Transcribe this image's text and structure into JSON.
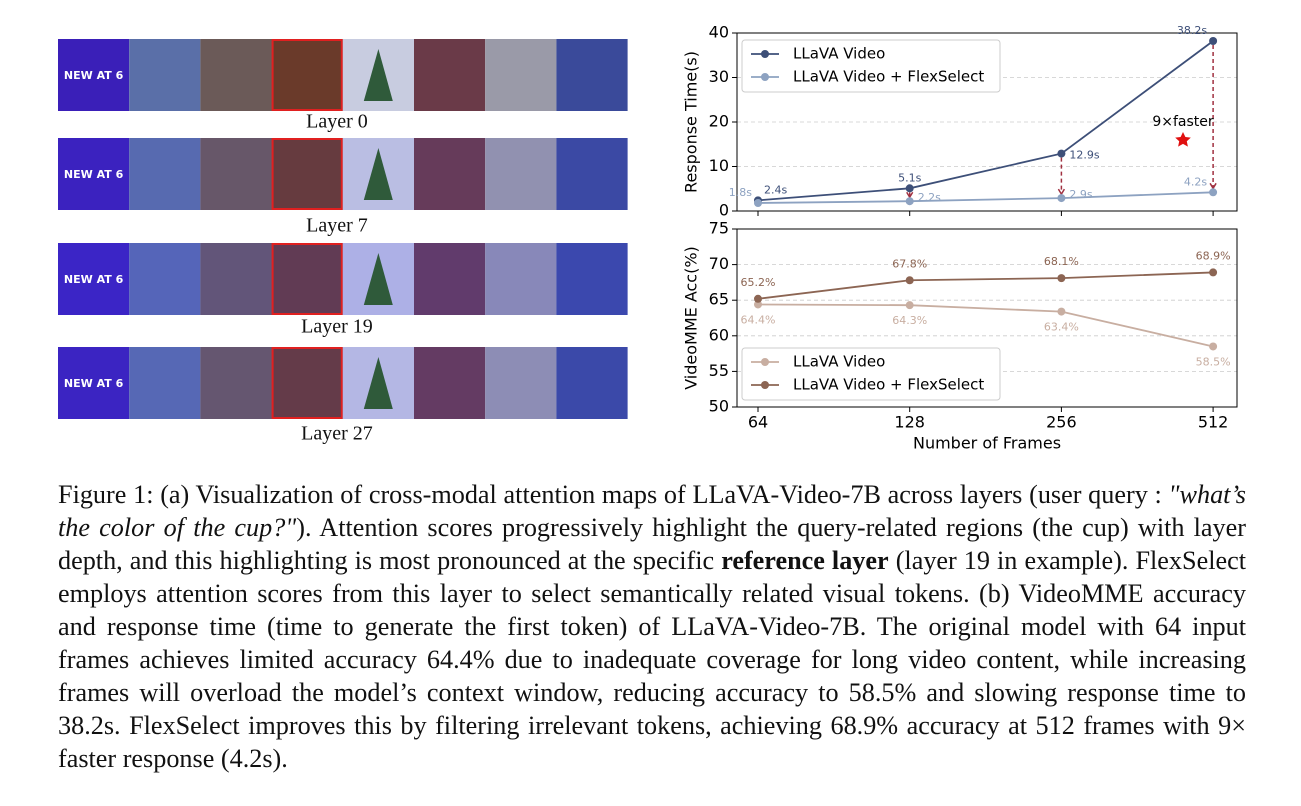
{
  "layers": [
    "Layer 0",
    "Layer 7",
    "Layer 19",
    "Layer 27"
  ],
  "frame_text": "NEW AT 6",
  "chart_data": [
    {
      "type": "line",
      "ylabel": "Response Time(s)",
      "ylim": [
        0,
        40
      ],
      "yticks": [
        0,
        10,
        20,
        30,
        40
      ],
      "grid": true,
      "legend": "upper left",
      "annotation": "9×faster",
      "series": [
        {
          "name": "LLaVA Video",
          "color": "#3d4f78",
          "values": [
            2.4,
            5.1,
            12.9,
            38.2
          ],
          "value_labels": [
            "2.4s",
            "5.1s",
            "12.9s",
            "38.2s"
          ]
        },
        {
          "name": "LLaVA Video + FlexSelect",
          "color": "#8da2c1",
          "values": [
            1.8,
            2.2,
            2.9,
            4.2
          ],
          "value_labels": [
            "1.8s",
            "2.2s",
            "2.9s",
            "4.2s"
          ]
        }
      ]
    },
    {
      "type": "line",
      "ylabel": "VideoMME Acc(%)",
      "xlabel": "Number of Frames",
      "categories": [
        64,
        128,
        256,
        512
      ],
      "ylim": [
        50,
        75
      ],
      "yticks": [
        50,
        55,
        60,
        65,
        70,
        75
      ],
      "grid": true,
      "legend": "lower left",
      "series": [
        {
          "name": "LLaVA Video",
          "color": "#c8aea1",
          "values": [
            64.4,
            64.3,
            63.4,
            58.5
          ],
          "value_labels": [
            "64.4%",
            "64.3%",
            "63.4%",
            "58.5%"
          ]
        },
        {
          "name": "LLaVA Video + FlexSelect",
          "color": "#8c6553",
          "values": [
            65.2,
            67.8,
            68.1,
            68.9
          ],
          "value_labels": [
            "65.2%",
            "67.8%",
            "68.1%",
            "68.9%"
          ]
        }
      ]
    }
  ],
  "caption": [
    {
      "text": "Figure 1: (a) Visualization of cross-modal attention maps of LLaVA-Video-7B across layers (user query : ",
      "style": "normal"
    },
    {
      "text": "\"what’s the color of the cup?\"",
      "style": "italic"
    },
    {
      "text": "). Attention scores progressively highlight the query-related regions (the cup) with layer depth, and this highlighting is most pronounced at the specific ",
      "style": "normal"
    },
    {
      "text": "reference layer",
      "style": "bold"
    },
    {
      "text": " (layer 19 in example). FlexSelect employs attention scores from this layer to select semantically related visual tokens. (b) VideoMME accuracy and response time (time to generate the first token) of LLaVA-Video-7B. The original model with 64 input frames achieves limited accuracy 64.4% due to inadequate coverage for long video content, while increasing frames will overload the model’s context window, reducing accuracy to 58.5% and slowing response time to 38.2s. FlexSelect improves this by filtering irrelevant tokens, achieving 68.9% accuracy at 512 frames with 9× faster response (4.2s).",
      "style": "normal"
    }
  ]
}
